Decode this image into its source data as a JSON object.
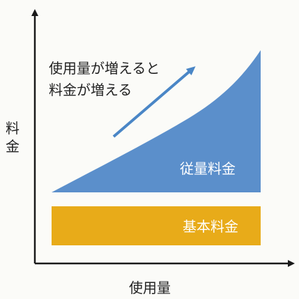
{
  "axes": {
    "y_label_chars": [
      "料",
      "金"
    ],
    "x_label": "使用量"
  },
  "annotation": {
    "line1": "使用量が増えると",
    "line2": "料金が増える"
  },
  "areas": {
    "variable_label": "従量料金",
    "base_label": "基本料金"
  },
  "colors": {
    "variable_fill": "#5b8fcb",
    "base_fill": "#e8ab19",
    "arrow": "#4a86c6",
    "axis": "#1a1a1a",
    "text": "#222222",
    "area_text": "#ffffff"
  }
}
